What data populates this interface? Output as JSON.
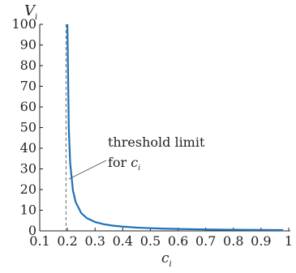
{
  "chart_data": {
    "type": "line",
    "title": "",
    "xlabel": {
      "base": "c",
      "sub": "i"
    },
    "ylabel": {
      "base": "V",
      "sub": "i"
    },
    "xlim": [
      0.1,
      1.0
    ],
    "ylim": [
      0,
      100
    ],
    "xticks": [
      "0.1",
      "0.2",
      "0.3",
      "0.4",
      "0.5",
      "0.6",
      "0.7",
      "0.8",
      "0.9",
      "1"
    ],
    "yticks": [
      "0",
      "10",
      "20",
      "30",
      "40",
      "50",
      "60",
      "70",
      "80",
      "90",
      "100"
    ],
    "grid": false,
    "legend": "none",
    "series": [
      {
        "color": "#1f6fb7",
        "x": [
          0.2,
          0.205,
          0.21,
          0.22,
          0.23,
          0.25,
          0.27,
          0.3,
          0.33,
          0.36,
          0.4,
          0.45,
          0.5,
          0.55,
          0.6,
          0.65,
          0.7,
          0.75,
          0.8,
          0.85,
          0.9,
          0.95,
          0.98
        ],
        "y": [
          100,
          49.6,
          32.9,
          19.6,
          13.9,
          8.6,
          6.2,
          4.3,
          3.25,
          2.6,
          2.06,
          1.6,
          1.3,
          1.08,
          0.92,
          0.8,
          0.7,
          0.62,
          0.56,
          0.5,
          0.46,
          0.42,
          0.4
        ]
      }
    ],
    "threshold": {
      "x": 0.195,
      "color": "#666666",
      "style": "dashed"
    },
    "annotation": {
      "line1": "threshold limit",
      "line2_prefix": "for ",
      "line2_var": {
        "base": "c",
        "sub": "i"
      },
      "target": {
        "x": 0.205,
        "y": 27
      }
    }
  }
}
